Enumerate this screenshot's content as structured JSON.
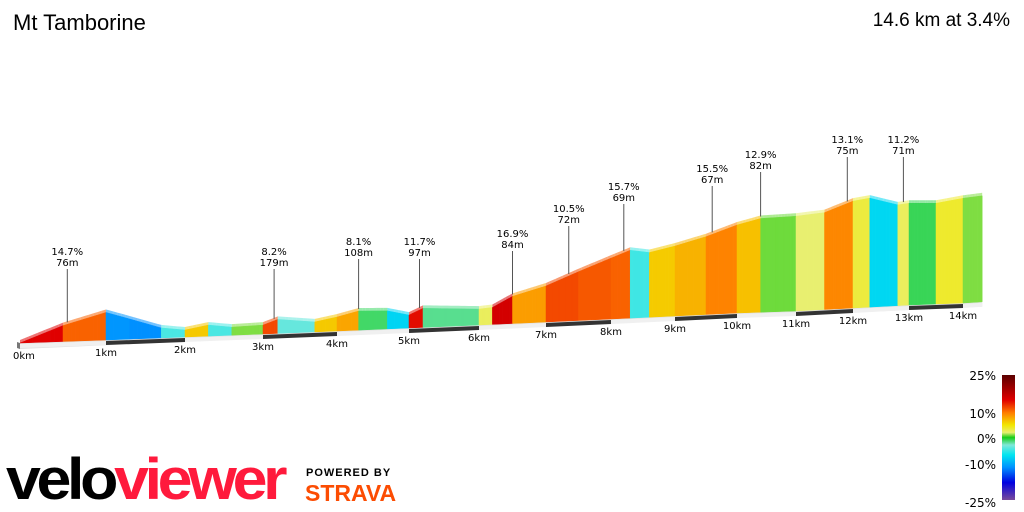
{
  "header": {
    "title": "Mt Tamborine",
    "summary": "14.6 km at 3.4%"
  },
  "logo": {
    "velo": "velo",
    "viewer": "viewer",
    "powered_by": "POWERED BY",
    "strava": "STRAVA"
  },
  "chart_data": {
    "type": "area",
    "title": "Mt Tamborine",
    "xlabel": "",
    "ylabel": "",
    "x_unit": "km",
    "xlim": [
      0,
      14.6
    ],
    "x_ticks": [
      "0km",
      "1km",
      "2km",
      "3km",
      "4km",
      "5km",
      "6km",
      "7km",
      "8km",
      "9km",
      "10km",
      "11km",
      "12km",
      "13km",
      "14km"
    ],
    "profile": {
      "distance_km": [
        0,
        0.5,
        1.0,
        1.3,
        1.7,
        2.0,
        2.3,
        2.6,
        3.0,
        3.2,
        3.7,
        4.0,
        4.3,
        4.7,
        5.0,
        5.2,
        6.0,
        6.2,
        6.5,
        7.0,
        7.5,
        8.0,
        8.3,
        8.6,
        9.0,
        9.5,
        10.0,
        10.4,
        11.0,
        11.5,
        12.0,
        12.3,
        12.8,
        13.0,
        13.5,
        14.0,
        14.6
      ],
      "elevation_m": [
        0,
        75,
        130,
        95,
        47,
        33,
        52,
        38,
        42,
        66,
        47,
        66,
        90,
        85,
        61,
        90,
        75,
        80,
        128,
        170,
        230,
        287,
        320,
        305,
        330,
        367,
        415,
        442,
        447,
        457,
        504,
        514,
        475,
        480,
        475,
        494,
        500
      ]
    },
    "climbs": [
      {
        "km": 0.55,
        "gradient": "14.7%",
        "length": "76m"
      },
      {
        "km": 3.15,
        "gradient": "8.2%",
        "length": "179m"
      },
      {
        "km": 4.3,
        "gradient": "8.1%",
        "length": "108m"
      },
      {
        "km": 5.15,
        "gradient": "11.7%",
        "length": "97m"
      },
      {
        "km": 6.5,
        "gradient": "16.9%",
        "length": "84m"
      },
      {
        "km": 7.35,
        "gradient": "10.5%",
        "length": "72m"
      },
      {
        "km": 8.2,
        "gradient": "15.7%",
        "length": "69m"
      },
      {
        "km": 9.6,
        "gradient": "15.5%",
        "length": "67m"
      },
      {
        "km": 10.4,
        "gradient": "12.9%",
        "length": "82m"
      },
      {
        "km": 11.9,
        "gradient": "13.1%",
        "length": "75m"
      },
      {
        "km": 12.9,
        "gradient": "11.2%",
        "length": "71m"
      }
    ],
    "legend": {
      "placement": "bottom-right",
      "labels": [
        "25%",
        "10%",
        "0%",
        "-10%",
        "-25%"
      ],
      "stops": [
        {
          "pct": 25,
          "color": "#5a0000"
        },
        {
          "pct": 15,
          "color": "#e00000"
        },
        {
          "pct": 10,
          "color": "#ff7a00"
        },
        {
          "pct": 5,
          "color": "#f2e600"
        },
        {
          "pct": 2,
          "color": "#e8ef70"
        },
        {
          "pct": 0,
          "color": "#16cc16"
        },
        {
          "pct": -3,
          "color": "#7fe8d8"
        },
        {
          "pct": -7,
          "color": "#00e5f0"
        },
        {
          "pct": -12,
          "color": "#0090ff"
        },
        {
          "pct": -18,
          "color": "#0000e0"
        },
        {
          "pct": -25,
          "color": "#7a4a9a"
        }
      ]
    }
  }
}
